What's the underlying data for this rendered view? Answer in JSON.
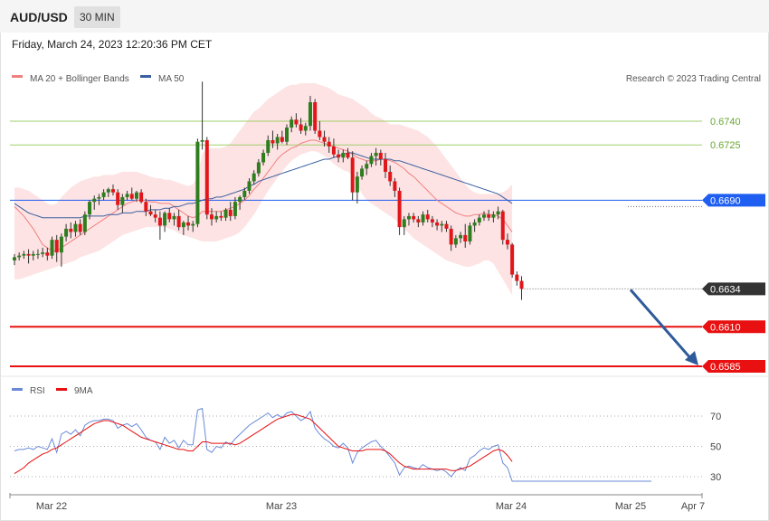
{
  "header": {
    "pair": "AUD/USD",
    "timeframe": "30 MIN"
  },
  "subheader": {
    "datetime": "Friday, March 24, 2023 12:20:36 PM CET"
  },
  "legend": {
    "ma20": "MA 20 + Bollinger Bands",
    "ma50": "MA 50",
    "copyright": "Research © 2023 Trading Central",
    "rsi": "RSI",
    "rsi_ma": "9MA"
  },
  "colors": {
    "up": "#2e7d1e",
    "down": "#e0161b",
    "ma20": "#f08080",
    "ma50": "#3a5fa0",
    "band": "#fde3e3",
    "resist": "#9fcf6a",
    "pivot": "#1e5ef0",
    "support": "#e81010",
    "current": "#333333",
    "arrow": "#2f5a9a",
    "rsi": "#6a8ad8"
  },
  "chart_data": {
    "type": "candlestick",
    "instrument": "AUD/USD",
    "interval": "30 MIN",
    "x_ticks": [
      "Mar 22",
      "Mar 23",
      "Mar 24",
      "Mar 25",
      "Apr 7"
    ],
    "levels": [
      {
        "value": 0.674,
        "label": "0.6740",
        "kind": "resistance"
      },
      {
        "value": 0.6725,
        "label": "0.6725",
        "kind": "resistance"
      },
      {
        "value": 0.669,
        "label": "0.6690",
        "kind": "pivot"
      },
      {
        "value": 0.6634,
        "label": "0.6634",
        "kind": "current"
      },
      {
        "value": 0.661,
        "label": "0.6610",
        "kind": "support"
      },
      {
        "value": 0.6585,
        "label": "0.6585",
        "kind": "support"
      }
    ],
    "candles_ohlc": [
      [
        0.6652,
        0.6656,
        0.6649,
        0.6654
      ],
      [
        0.6654,
        0.6657,
        0.6652,
        0.6655
      ],
      [
        0.6655,
        0.6658,
        0.6653,
        0.6656
      ],
      [
        0.6656,
        0.6659,
        0.665,
        0.6655
      ],
      [
        0.6655,
        0.6658,
        0.6652,
        0.6656
      ],
      [
        0.6656,
        0.6659,
        0.6653,
        0.6656
      ],
      [
        0.6656,
        0.666,
        0.6654,
        0.6657
      ],
      [
        0.6657,
        0.666,
        0.6652,
        0.6655
      ],
      [
        0.6655,
        0.6667,
        0.6653,
        0.6665
      ],
      [
        0.6665,
        0.6668,
        0.6651,
        0.6657
      ],
      [
        0.6657,
        0.6669,
        0.6648,
        0.6667
      ],
      [
        0.6667,
        0.6675,
        0.6664,
        0.6672
      ],
      [
        0.6672,
        0.6676,
        0.6666,
        0.667
      ],
      [
        0.667,
        0.6677,
        0.6667,
        0.6675
      ],
      [
        0.6675,
        0.6678,
        0.6668,
        0.667
      ],
      [
        0.667,
        0.6683,
        0.6668,
        0.6681
      ],
      [
        0.6681,
        0.669,
        0.6678,
        0.6689
      ],
      [
        0.6689,
        0.6693,
        0.6684,
        0.6691
      ],
      [
        0.6691,
        0.6694,
        0.6687,
        0.6692
      ],
      [
        0.6692,
        0.6697,
        0.669,
        0.6695
      ],
      [
        0.6695,
        0.6698,
        0.6692,
        0.6697
      ],
      [
        0.6697,
        0.67,
        0.6693,
        0.6695
      ],
      [
        0.6695,
        0.6697,
        0.6684,
        0.6687
      ],
      [
        0.6687,
        0.6694,
        0.6682,
        0.6692
      ],
      [
        0.6692,
        0.6696,
        0.669,
        0.6694
      ],
      [
        0.6694,
        0.6698,
        0.669,
        0.6691
      ],
      [
        0.6691,
        0.6696,
        0.6689,
        0.6695
      ],
      [
        0.6695,
        0.6697,
        0.6688,
        0.6689
      ],
      [
        0.6689,
        0.6691,
        0.668,
        0.6683
      ],
      [
        0.6683,
        0.6687,
        0.668,
        0.6681
      ],
      [
        0.6681,
        0.6684,
        0.6676,
        0.6679
      ],
      [
        0.6679,
        0.6683,
        0.6665,
        0.6674
      ],
      [
        0.6674,
        0.6683,
        0.667,
        0.6682
      ],
      [
        0.6682,
        0.6685,
        0.6676,
        0.6678
      ],
      [
        0.6678,
        0.6682,
        0.6674,
        0.668
      ],
      [
        0.668,
        0.6684,
        0.6671,
        0.6673
      ],
      [
        0.6673,
        0.6677,
        0.6668,
        0.6676
      ],
      [
        0.6676,
        0.668,
        0.6671,
        0.6674
      ],
      [
        0.6674,
        0.6677,
        0.667,
        0.6675
      ],
      [
        0.6675,
        0.6729,
        0.6673,
        0.6727
      ],
      [
        0.6727,
        0.6765,
        0.6722,
        0.6728
      ],
      [
        0.6728,
        0.673,
        0.6678,
        0.6681
      ],
      [
        0.6681,
        0.6685,
        0.6674,
        0.6678
      ],
      [
        0.6678,
        0.6683,
        0.6676,
        0.668
      ],
      [
        0.668,
        0.6683,
        0.6677,
        0.6679
      ],
      [
        0.6679,
        0.6685,
        0.6677,
        0.6684
      ],
      [
        0.6684,
        0.6689,
        0.6677,
        0.668
      ],
      [
        0.668,
        0.6692,
        0.6678,
        0.6689
      ],
      [
        0.6689,
        0.6693,
        0.6684,
        0.6692
      ],
      [
        0.6692,
        0.6698,
        0.669,
        0.6696
      ],
      [
        0.6696,
        0.6704,
        0.6694,
        0.6702
      ],
      [
        0.6702,
        0.6709,
        0.67,
        0.6707
      ],
      [
        0.6707,
        0.6716,
        0.6705,
        0.6714
      ],
      [
        0.6714,
        0.6722,
        0.6712,
        0.672
      ],
      [
        0.672,
        0.6731,
        0.6718,
        0.6728
      ],
      [
        0.6728,
        0.6734,
        0.6723,
        0.6726
      ],
      [
        0.6726,
        0.6732,
        0.6722,
        0.673
      ],
      [
        0.673,
        0.6734,
        0.6726,
        0.6727
      ],
      [
        0.6727,
        0.6738,
        0.6725,
        0.6736
      ],
      [
        0.6736,
        0.6743,
        0.6733,
        0.6741
      ],
      [
        0.6741,
        0.6745,
        0.6736,
        0.6738
      ],
      [
        0.6738,
        0.6742,
        0.6732,
        0.6734
      ],
      [
        0.6734,
        0.6739,
        0.6731,
        0.6737
      ],
      [
        0.6737,
        0.6756,
        0.6734,
        0.6752
      ],
      [
        0.6752,
        0.6754,
        0.6732,
        0.6734
      ],
      [
        0.6734,
        0.674,
        0.6728,
        0.673
      ],
      [
        0.673,
        0.6734,
        0.6724,
        0.6727
      ],
      [
        0.6727,
        0.673,
        0.672,
        0.6724
      ],
      [
        0.6724,
        0.6729,
        0.6717,
        0.6719
      ],
      [
        0.6719,
        0.6722,
        0.6714,
        0.6717
      ],
      [
        0.6717,
        0.6722,
        0.6714,
        0.672
      ],
      [
        0.672,
        0.6723,
        0.6716,
        0.6717
      ],
      [
        0.6717,
        0.6721,
        0.669,
        0.6695
      ],
      [
        0.6695,
        0.6708,
        0.6688,
        0.6705
      ],
      [
        0.6705,
        0.6712,
        0.6703,
        0.671
      ],
      [
        0.671,
        0.6715,
        0.6706,
        0.6713
      ],
      [
        0.6713,
        0.672,
        0.6711,
        0.6718
      ],
      [
        0.6718,
        0.6723,
        0.6712,
        0.672
      ],
      [
        0.672,
        0.6722,
        0.6712,
        0.6716
      ],
      [
        0.6716,
        0.672,
        0.6704,
        0.6708
      ],
      [
        0.6708,
        0.6712,
        0.6699,
        0.6702
      ],
      [
        0.6702,
        0.6704,
        0.6692,
        0.6696
      ],
      [
        0.6696,
        0.6698,
        0.6668,
        0.6673
      ],
      [
        0.6673,
        0.668,
        0.6668,
        0.6678
      ],
      [
        0.6678,
        0.6682,
        0.6674,
        0.668
      ],
      [
        0.668,
        0.6682,
        0.6676,
        0.6678
      ],
      [
        0.6678,
        0.668,
        0.6673,
        0.6676
      ],
      [
        0.6676,
        0.6683,
        0.6674,
        0.6681
      ],
      [
        0.6681,
        0.6684,
        0.6676,
        0.6678
      ],
      [
        0.6678,
        0.668,
        0.6673,
        0.6676
      ],
      [
        0.6676,
        0.6678,
        0.6671,
        0.6674
      ],
      [
        0.6674,
        0.6677,
        0.667,
        0.6675
      ],
      [
        0.6675,
        0.6677,
        0.667,
        0.6672
      ],
      [
        0.6672,
        0.6674,
        0.6658,
        0.6662
      ],
      [
        0.6662,
        0.6668,
        0.666,
        0.6666
      ],
      [
        0.6666,
        0.667,
        0.6663,
        0.6668
      ],
      [
        0.6668,
        0.6675,
        0.666,
        0.6664
      ],
      [
        0.6664,
        0.6676,
        0.6662,
        0.6674
      ],
      [
        0.6674,
        0.6678,
        0.667,
        0.6676
      ],
      [
        0.6676,
        0.6681,
        0.6674,
        0.6679
      ],
      [
        0.6679,
        0.6683,
        0.6677,
        0.6681
      ],
      [
        0.6681,
        0.6684,
        0.6677,
        0.6679
      ],
      [
        0.6679,
        0.6683,
        0.6676,
        0.6681
      ],
      [
        0.6681,
        0.6686,
        0.6678,
        0.6683
      ],
      [
        0.6683,
        0.6684,
        0.6662,
        0.6665
      ],
      [
        0.6665,
        0.6669,
        0.6659,
        0.6662
      ],
      [
        0.6662,
        0.6663,
        0.6641,
        0.6643
      ],
      [
        0.6643,
        0.6645,
        0.6636,
        0.6639
      ],
      [
        0.6639,
        0.6642,
        0.6627,
        0.6634
      ]
    ],
    "ma20": [
      0.6686,
      0.6683,
      0.668,
      0.6676,
      0.6672,
      0.6667,
      0.6662,
      0.666,
      0.6658,
      0.6658,
      0.666,
      0.6662,
      0.6664,
      0.6666,
      0.6668,
      0.667,
      0.6672,
      0.6674,
      0.6676,
      0.6678,
      0.668,
      0.6682,
      0.6684,
      0.6686,
      0.6688,
      0.6689,
      0.669,
      0.669,
      0.669,
      0.6689,
      0.6689,
      0.6688,
      0.6688,
      0.6688,
      0.6686,
      0.6684,
      0.6682,
      0.668,
      0.6679,
      0.668,
      0.6683,
      0.6683,
      0.6683,
      0.6683,
      0.6683,
      0.6684,
      0.6685,
      0.6686,
      0.6688,
      0.669,
      0.6693,
      0.6697,
      0.67,
      0.6704,
      0.6708,
      0.6712,
      0.6716,
      0.6719,
      0.6721,
      0.6723,
      0.6724,
      0.6726,
      0.6727,
      0.6728,
      0.6728,
      0.6727,
      0.6726,
      0.6725,
      0.6724,
      0.6723,
      0.6722,
      0.6721,
      0.6719,
      0.6717,
      0.6716,
      0.6715,
      0.6715,
      0.6715,
      0.6716,
      0.6716,
      0.6715,
      0.6714,
      0.6712,
      0.671,
      0.6707,
      0.6705,
      0.6702,
      0.6699,
      0.6696,
      0.6693,
      0.669,
      0.6688,
      0.6686,
      0.6684,
      0.6682,
      0.6681,
      0.668,
      0.668,
      0.6681,
      0.6681,
      0.6682,
      0.6681,
      0.6681,
      0.668,
      0.6678,
      0.6674,
      0.667
    ],
    "bb_upper": [
      0.6698,
      0.6698,
      0.6697,
      0.6696,
      0.6694,
      0.6692,
      0.669,
      0.6688,
      0.6687,
      0.6688,
      0.6692,
      0.6695,
      0.6698,
      0.67,
      0.6702,
      0.6703,
      0.6704,
      0.6705,
      0.6705,
      0.6706,
      0.6706,
      0.6706,
      0.6707,
      0.6708,
      0.6708,
      0.6708,
      0.6708,
      0.6707,
      0.6706,
      0.6705,
      0.6704,
      0.6704,
      0.6703,
      0.6703,
      0.6702,
      0.6701,
      0.67,
      0.6699,
      0.67,
      0.6705,
      0.672,
      0.6722,
      0.6723,
      0.6723,
      0.6723,
      0.6724,
      0.6726,
      0.673,
      0.6734,
      0.6738,
      0.6742,
      0.6746,
      0.6748,
      0.6751,
      0.6754,
      0.6756,
      0.6758,
      0.676,
      0.6762,
      0.6763,
      0.6763,
      0.6764,
      0.6764,
      0.6764,
      0.6764,
      0.6763,
      0.6762,
      0.6761,
      0.6759,
      0.6757,
      0.6756,
      0.6755,
      0.6754,
      0.6752,
      0.675,
      0.6748,
      0.6745,
      0.6743,
      0.6742,
      0.674,
      0.6738,
      0.6738,
      0.6738,
      0.6737,
      0.6736,
      0.6735,
      0.6734,
      0.6732,
      0.673,
      0.6727,
      0.6724,
      0.672,
      0.6716,
      0.6712,
      0.6708,
      0.6704,
      0.67,
      0.6697,
      0.6695,
      0.6694,
      0.6694,
      0.6694,
      0.6694,
      0.6694,
      0.6695,
      0.6697,
      0.67
    ],
    "bb_lower": [
      0.664,
      0.664,
      0.6641,
      0.6642,
      0.6643,
      0.6644,
      0.6645,
      0.6646,
      0.6647,
      0.6648,
      0.6649,
      0.665,
      0.6651,
      0.6652,
      0.6654,
      0.6655,
      0.6656,
      0.6657,
      0.6658,
      0.666,
      0.6662,
      0.6664,
      0.6666,
      0.6668,
      0.6669,
      0.667,
      0.6671,
      0.6672,
      0.6673,
      0.6673,
      0.6673,
      0.6673,
      0.6673,
      0.6672,
      0.6671,
      0.6669,
      0.6668,
      0.6667,
      0.6666,
      0.6665,
      0.6664,
      0.6664,
      0.6664,
      0.6664,
      0.6665,
      0.6666,
      0.6667,
      0.6668,
      0.667,
      0.6673,
      0.6677,
      0.6681,
      0.6686,
      0.6691,
      0.6696,
      0.67,
      0.6704,
      0.6708,
      0.6712,
      0.6715,
      0.6717,
      0.6719,
      0.672,
      0.6721,
      0.6721,
      0.672,
      0.6718,
      0.6716,
      0.6713,
      0.6711,
      0.6709,
      0.6708,
      0.6706,
      0.67,
      0.6694,
      0.669,
      0.6688,
      0.6686,
      0.6684,
      0.6682,
      0.668,
      0.6678,
      0.6675,
      0.6672,
      0.6669,
      0.6666,
      0.6664,
      0.6662,
      0.666,
      0.6658,
      0.6656,
      0.6654,
      0.6652,
      0.6651,
      0.665,
      0.6649,
      0.6648,
      0.6648,
      0.6649,
      0.665,
      0.6652,
      0.6652,
      0.665,
      0.6645,
      0.664,
      0.6635,
      0.663
    ],
    "ma50": [
      0.6688,
      0.6686,
      0.6684,
      0.6682,
      0.6681,
      0.668,
      0.6679,
      0.6679,
      0.6679,
      0.6679,
      0.6679,
      0.6679,
      0.6679,
      0.6679,
      0.6679,
      0.668,
      0.668,
      0.668,
      0.668,
      0.668,
      0.6681,
      0.6681,
      0.6681,
      0.6682,
      0.6682,
      0.6682,
      0.6683,
      0.6683,
      0.6683,
      0.6684,
      0.6684,
      0.6684,
      0.6685,
      0.6685,
      0.6686,
      0.6686,
      0.6687,
      0.6688,
      0.6688,
      0.6689,
      0.669,
      0.6691,
      0.6691,
      0.6692,
      0.6692,
      0.6693,
      0.6694,
      0.6695,
      0.6696,
      0.6697,
      0.6699,
      0.67,
      0.6702,
      0.6703,
      0.6704,
      0.6705,
      0.6706,
      0.6707,
      0.6708,
      0.6709,
      0.671,
      0.6711,
      0.6712,
      0.6713,
      0.6714,
      0.6715,
      0.6716,
      0.6716,
      0.6717,
      0.6718,
      0.6719,
      0.672,
      0.672,
      0.6719,
      0.6718,
      0.6717,
      0.6716,
      0.6716,
      0.6716,
      0.6716,
      0.6716,
      0.6715,
      0.6715,
      0.6714,
      0.6713,
      0.6712,
      0.6711,
      0.671,
      0.6709,
      0.6708,
      0.6707,
      0.6706,
      0.6705,
      0.6704,
      0.6703,
      0.6702,
      0.6701,
      0.67,
      0.6699,
      0.6698,
      0.6697,
      0.6696,
      0.6695,
      0.6694,
      0.6692,
      0.669,
      0.6688
    ],
    "rsi": {
      "ticks": [
        70,
        50,
        30
      ],
      "range": [
        20,
        80
      ],
      "rsi": [
        47,
        48,
        48,
        49,
        48,
        50,
        49,
        48,
        55,
        46,
        58,
        60,
        58,
        61,
        57,
        64,
        66,
        67,
        67,
        68,
        68,
        67,
        62,
        64,
        65,
        63,
        65,
        61,
        56,
        54,
        53,
        48,
        56,
        52,
        54,
        49,
        54,
        51,
        51,
        74,
        75,
        48,
        46,
        50,
        49,
        53,
        51,
        55,
        58,
        61,
        64,
        66,
        68,
        70,
        72,
        69,
        71,
        69,
        72,
        73,
        70,
        67,
        69,
        73,
        62,
        58,
        55,
        53,
        50,
        49,
        52,
        49,
        39,
        46,
        49,
        51,
        53,
        54,
        50,
        47,
        43,
        39,
        31,
        36,
        37,
        36,
        35,
        38,
        36,
        35,
        34,
        35,
        33,
        30,
        34,
        36,
        34,
        42,
        44,
        47,
        49,
        48,
        50,
        51,
        39,
        36,
        27
      ],
      "ma9": [
        32,
        34,
        36,
        39,
        41,
        43,
        45,
        46,
        48,
        49,
        51,
        53,
        55,
        57,
        59,
        61,
        63,
        65,
        66,
        67,
        67,
        66,
        65,
        64,
        62,
        60,
        58,
        56,
        55,
        54,
        53,
        52,
        51,
        50,
        49,
        48,
        48,
        47,
        47,
        50,
        53,
        53,
        52,
        52,
        52,
        52,
        52,
        51,
        52,
        54,
        56,
        58,
        60,
        62,
        64,
        66,
        68,
        69,
        70,
        71,
        71,
        70,
        69,
        68,
        65,
        62,
        59,
        56,
        53,
        50,
        49,
        48,
        47,
        47,
        47,
        48,
        48,
        48,
        48,
        47,
        45,
        42,
        39,
        37,
        36,
        35,
        35,
        35,
        35,
        35,
        35,
        35,
        35,
        34,
        34,
        35,
        36,
        37,
        39,
        41,
        43,
        45,
        47,
        48,
        47,
        44,
        40
      ]
    }
  }
}
